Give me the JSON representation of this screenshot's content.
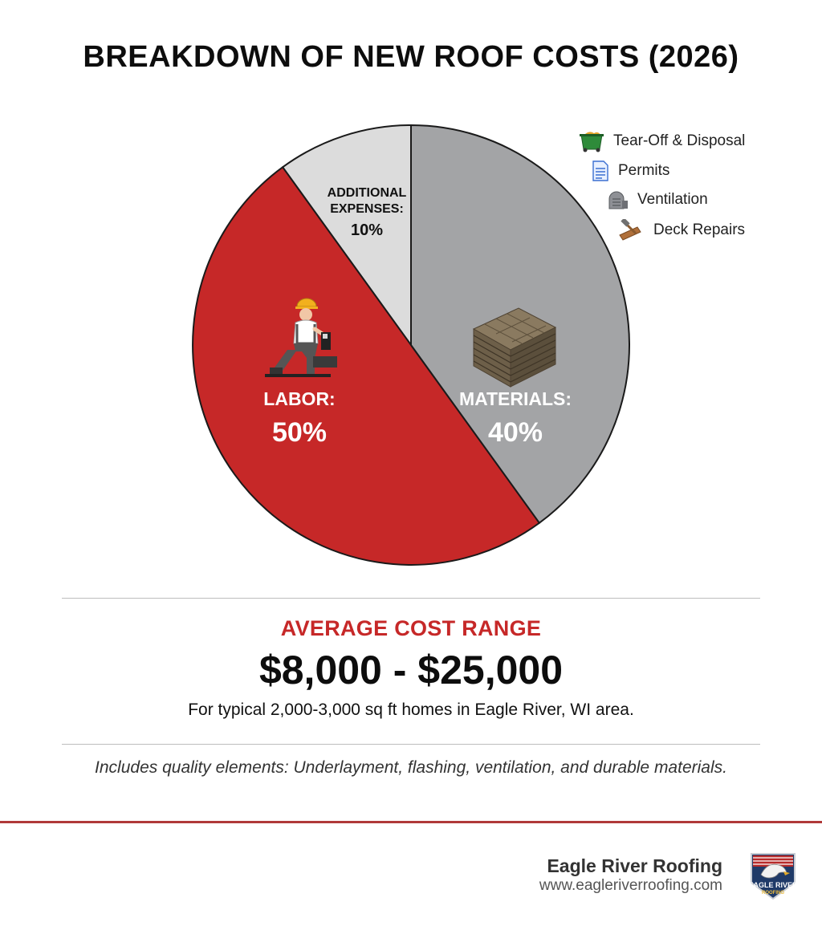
{
  "title": "BREAKDOWN OF NEW ROOF COSTS (2026)",
  "chart_data": {
    "type": "pie",
    "slices": [
      {
        "label_line1": "ADDITIONAL",
        "label_line2": "EXPENSES:",
        "value_text": "10%",
        "value": 10,
        "color": "#dcdcdc",
        "label_color": "#111111"
      },
      {
        "label_line1": "LABOR:",
        "label_line2": "",
        "value_text": "50%",
        "value": 50,
        "color": "#c62828",
        "label_color": "#ffffff"
      },
      {
        "label_line1": "MATERIALS:",
        "label_line2": "",
        "value_text": "40%",
        "value": 40,
        "color": "#a3a4a6",
        "label_color": "#ffffff"
      }
    ]
  },
  "legend": [
    {
      "label": "Tear-Off & Disposal",
      "icon": "dumpster-icon"
    },
    {
      "label": "Permits",
      "icon": "document-icon"
    },
    {
      "label": "Ventilation",
      "icon": "vent-icon"
    },
    {
      "label": "Deck Repairs",
      "icon": "hammer-icon"
    }
  ],
  "cost_range": {
    "heading": "AVERAGE COST RANGE",
    "value": "$8,000 - $25,000",
    "note": "For typical 2,000-3,000 sq ft homes in Eagle River, WI area."
  },
  "includes_note": "Includes quality elements: Underlayment, flashing, ventilation, and durable materials.",
  "footer": {
    "company": "Eagle River Roofing",
    "url": "www.eagleriverroofing.com",
    "logo_text_line1": "EAGLE RIVER",
    "logo_text_line2": "ROOFING"
  },
  "colors": {
    "accent": "#c62828",
    "materials": "#a3a4a6",
    "additional": "#dcdcdc"
  }
}
